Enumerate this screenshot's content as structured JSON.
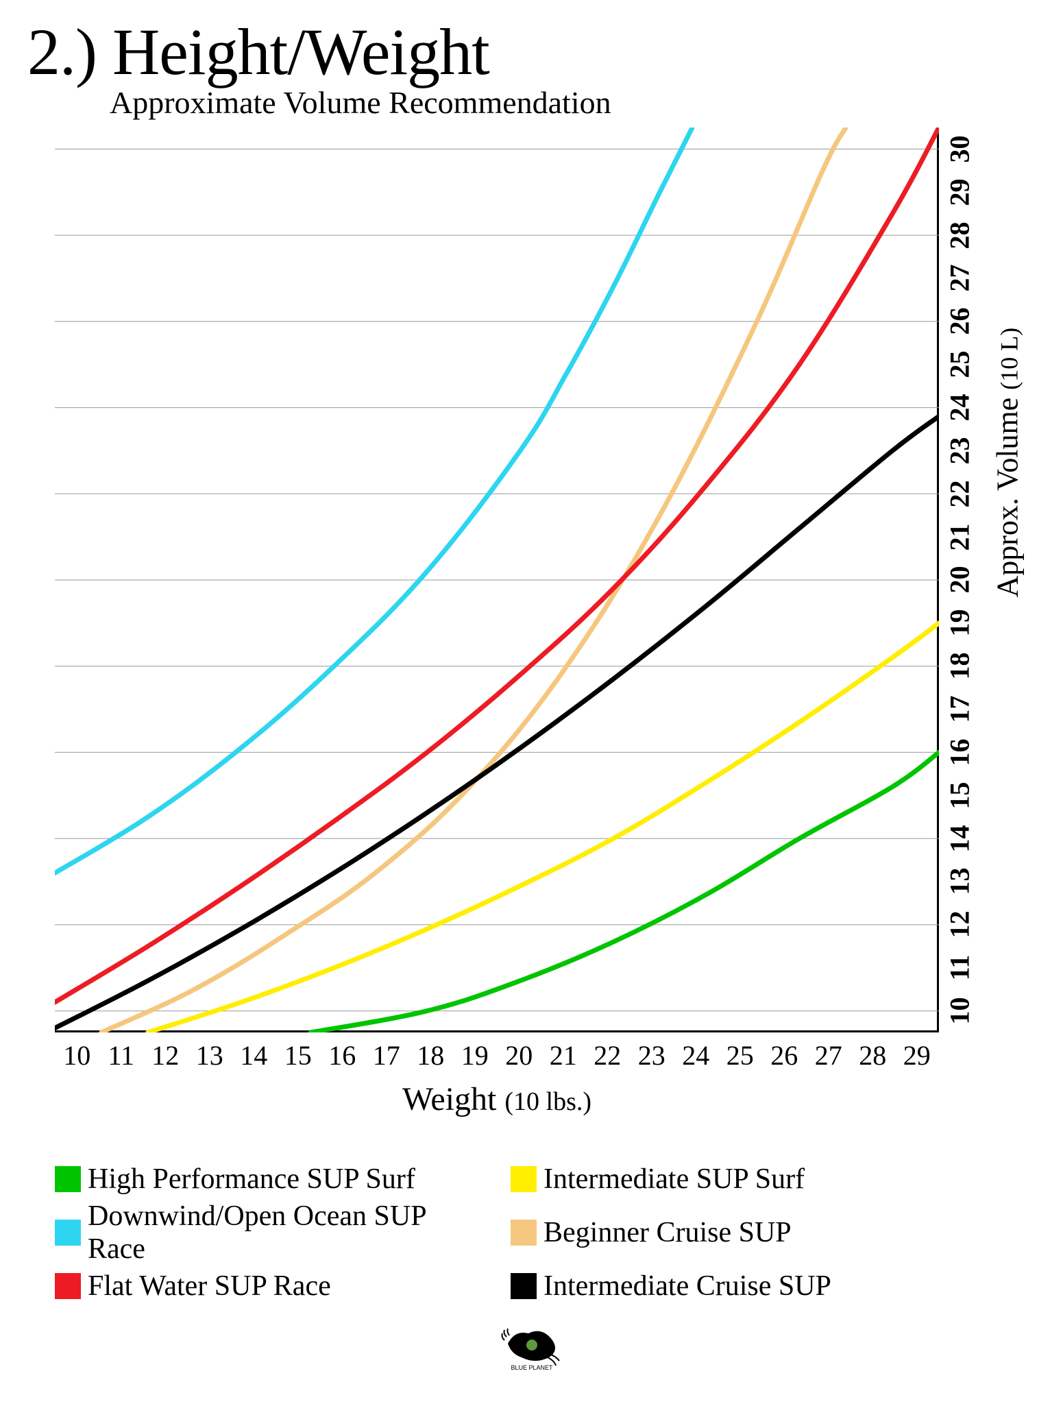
{
  "title": "2.) Height/Weight",
  "subtitle": "Approximate Volume Recommendation",
  "chart": {
    "type": "line",
    "background_color": "#ffffff",
    "grid_color": "#999999",
    "axis_color": "#000000",
    "line_width": 7,
    "x_axis": {
      "label": "Weight",
      "unit": "(10 lbs.)",
      "ticks": [
        10,
        11,
        12,
        13,
        14,
        15,
        16,
        17,
        18,
        19,
        20,
        21,
        22,
        23,
        24,
        25,
        26,
        27,
        28,
        29
      ],
      "min": 10,
      "max": 29,
      "label_fontsize": 48,
      "tick_fontsize": 40
    },
    "y_axis": {
      "label": "Approx. Volume",
      "unit": "(10 L)",
      "ticks": [
        10,
        11,
        12,
        13,
        14,
        15,
        16,
        17,
        18,
        19,
        20,
        21,
        22,
        23,
        24,
        25,
        26,
        27,
        28,
        29,
        30
      ],
      "min": 9.5,
      "max": 30.5,
      "label_fontsize": 44,
      "tick_fontsize": 40,
      "grid_lines_at": [
        10,
        12,
        14,
        16,
        18,
        20,
        22,
        24,
        26,
        28,
        30
      ],
      "position": "right"
    },
    "series": [
      {
        "name": "High Performance SUP Surf",
        "color": "#00c400",
        "points": [
          [
            15.5,
            9.5
          ],
          [
            18,
            10
          ],
          [
            20,
            10.7
          ],
          [
            22,
            11.6
          ],
          [
            24,
            12.7
          ],
          [
            26,
            14
          ],
          [
            28,
            15.2
          ],
          [
            29,
            16
          ]
        ]
      },
      {
        "name": "Intermediate SUP Surf",
        "color": "#ffee00",
        "points": [
          [
            12,
            9.5
          ],
          [
            14,
            10.2
          ],
          [
            16,
            11
          ],
          [
            18,
            11.9
          ],
          [
            20,
            12.9
          ],
          [
            22,
            14
          ],
          [
            24,
            15.3
          ],
          [
            26,
            16.7
          ],
          [
            28,
            18.2
          ],
          [
            29,
            19
          ]
        ]
      },
      {
        "name": "Downwind/Open Ocean SUP Race",
        "color": "#2dd5f0",
        "points": [
          [
            10,
            13.2
          ],
          [
            12,
            14.5
          ],
          [
            14,
            16.1
          ],
          [
            16,
            18
          ],
          [
            18,
            20.2
          ],
          [
            20,
            23
          ],
          [
            21,
            24.8
          ],
          [
            22,
            26.8
          ],
          [
            23,
            29
          ],
          [
            23.7,
            30.5
          ]
        ]
      },
      {
        "name": "Beginner Cruise SUP",
        "color": "#f5c77e",
        "points": [
          [
            11,
            9.5
          ],
          [
            13,
            10.5
          ],
          [
            15,
            11.8
          ],
          [
            17,
            13.3
          ],
          [
            19,
            15.3
          ],
          [
            21,
            18
          ],
          [
            23,
            21.5
          ],
          [
            25,
            25.8
          ],
          [
            26.5,
            29.5
          ],
          [
            27,
            30.5
          ]
        ]
      },
      {
        "name": "Flat Water SUP Race",
        "color": "#ed1c24",
        "points": [
          [
            10,
            10.2
          ],
          [
            12,
            11.5
          ],
          [
            14,
            12.9
          ],
          [
            16,
            14.4
          ],
          [
            18,
            16
          ],
          [
            20,
            17.8
          ],
          [
            22,
            19.8
          ],
          [
            24,
            22.2
          ],
          [
            26,
            25
          ],
          [
            28,
            28.5
          ],
          [
            29,
            30.5
          ]
        ]
      },
      {
        "name": "Intermediate Cruise SUP",
        "color": "#000000",
        "points": [
          [
            10,
            9.6
          ],
          [
            12,
            10.7
          ],
          [
            14,
            11.9
          ],
          [
            16,
            13.2
          ],
          [
            18,
            14.6
          ],
          [
            20,
            16.1
          ],
          [
            22,
            17.7
          ],
          [
            24,
            19.4
          ],
          [
            26,
            21.2
          ],
          [
            28,
            23
          ],
          [
            29,
            23.8
          ]
        ]
      }
    ],
    "legend_order": [
      {
        "idx": 0,
        "col": 0
      },
      {
        "idx": 1,
        "col": 1
      },
      {
        "idx": 2,
        "col": 0
      },
      {
        "idx": 3,
        "col": 1
      },
      {
        "idx": 4,
        "col": 0
      },
      {
        "idx": 5,
        "col": 1
      }
    ]
  }
}
